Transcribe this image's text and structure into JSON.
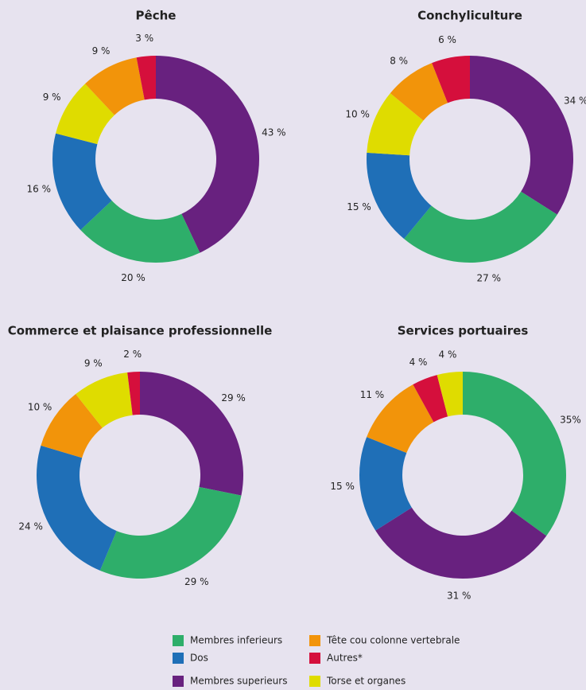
{
  "chart_data": [
    {
      "type": "donut",
      "title": "Pêche",
      "categories": [
        "Membres superieurs",
        "Membres inferieurs",
        "Dos",
        "Torse et organes",
        "Tête cou colonne vertebrale",
        "Autres*"
      ],
      "values": [
        43,
        20,
        16,
        9,
        9,
        3
      ],
      "value_labels": [
        "43 %",
        "20 %",
        "16 %",
        "9 %",
        "9 %",
        "3 %"
      ],
      "colors": [
        "#68217f",
        "#2eae6a",
        "#1f6fb7",
        "#dfdc00",
        "#f2940a",
        "#d50f3c"
      ]
    },
    {
      "type": "donut",
      "title": "Conchyliculture",
      "categories": [
        "Membres superieurs",
        "Membres inferieurs",
        "Dos",
        "Torse et organes",
        "Tête cou colonne vertebrale",
        "Autres*"
      ],
      "values": [
        34,
        27,
        15,
        10,
        8,
        6
      ],
      "value_labels": [
        "34 %",
        "27 %",
        "15 %",
        "10 %",
        "8 %",
        "6 %"
      ],
      "colors": [
        "#68217f",
        "#2eae6a",
        "#1f6fb7",
        "#dfdc00",
        "#f2940a",
        "#d50f3c"
      ]
    },
    {
      "type": "donut",
      "title": "Commerce et plaisance professionnelle",
      "categories": [
        "Membres superieurs",
        "Membres inferieurs",
        "Dos",
        "Tête cou colonne vertebrale",
        "Torse et organes",
        "Autres*"
      ],
      "values": [
        29,
        29,
        24,
        10,
        9,
        2
      ],
      "value_labels": [
        "29 %",
        "29 %",
        "24 %",
        "10 %",
        "9 %",
        "2 %"
      ],
      "colors": [
        "#68217f",
        "#2eae6a",
        "#1f6fb7",
        "#f2940a",
        "#dfdc00",
        "#d50f3c"
      ]
    },
    {
      "type": "donut",
      "title": "Services portuaires",
      "categories": [
        "Membres inferieurs",
        "Membres superieurs",
        "Dos",
        "Tête cou colonne vertebrale",
        "Autres*",
        "Torse et organes"
      ],
      "values": [
        35,
        31,
        15,
        11,
        4,
        4
      ],
      "value_labels": [
        "35%",
        "31 %",
        "15 %",
        "11 %",
        "4 %",
        "4 %"
      ],
      "colors": [
        "#2eae6a",
        "#68217f",
        "#1f6fb7",
        "#f2940a",
        "#d50f3c",
        "#dfdc00"
      ]
    }
  ]
}
